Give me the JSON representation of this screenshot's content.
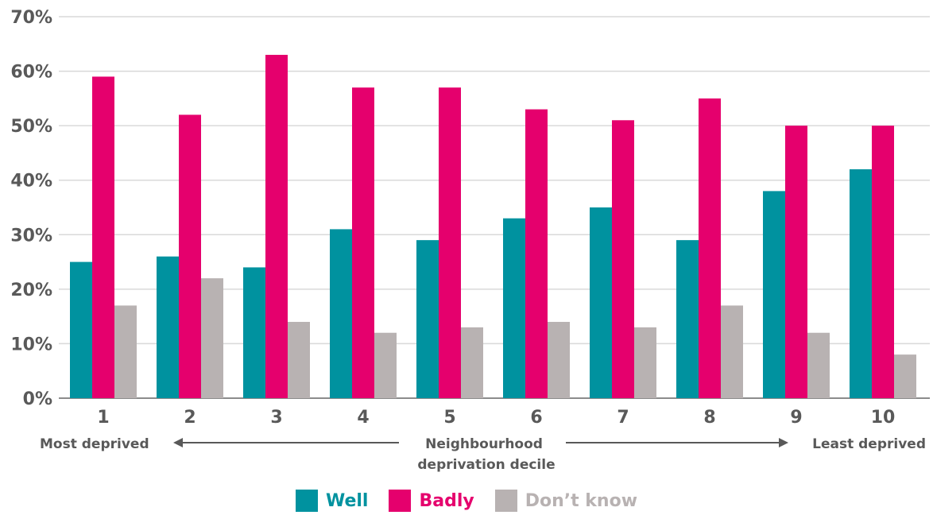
{
  "chart_data": {
    "type": "bar",
    "categories": [
      "1",
      "2",
      "3",
      "4",
      "5",
      "6",
      "7",
      "8",
      "9",
      "10"
    ],
    "series": [
      {
        "name": "Well",
        "color": "#00929f",
        "values": [
          25,
          26,
          24,
          31,
          29,
          33,
          35,
          29,
          38,
          42
        ]
      },
      {
        "name": "Badly",
        "color": "#e5006d",
        "values": [
          59,
          52,
          63,
          57,
          57,
          53,
          51,
          55,
          50,
          50
        ]
      },
      {
        "name": "Don’t know",
        "color": "#b8b2b2",
        "values": [
          17,
          22,
          14,
          12,
          13,
          14,
          13,
          17,
          12,
          8
        ]
      }
    ],
    "ylim": [
      0,
      70
    ],
    "yticks": [
      "0%",
      "10%",
      "20%",
      "30%",
      "40%",
      "50%",
      "60%",
      "70%"
    ],
    "xlabel": "Neighbourhood deprivation decile",
    "left_annotation": "Most deprived",
    "right_annotation": "Least deprived",
    "grid": true,
    "legend_position": "bottom"
  }
}
